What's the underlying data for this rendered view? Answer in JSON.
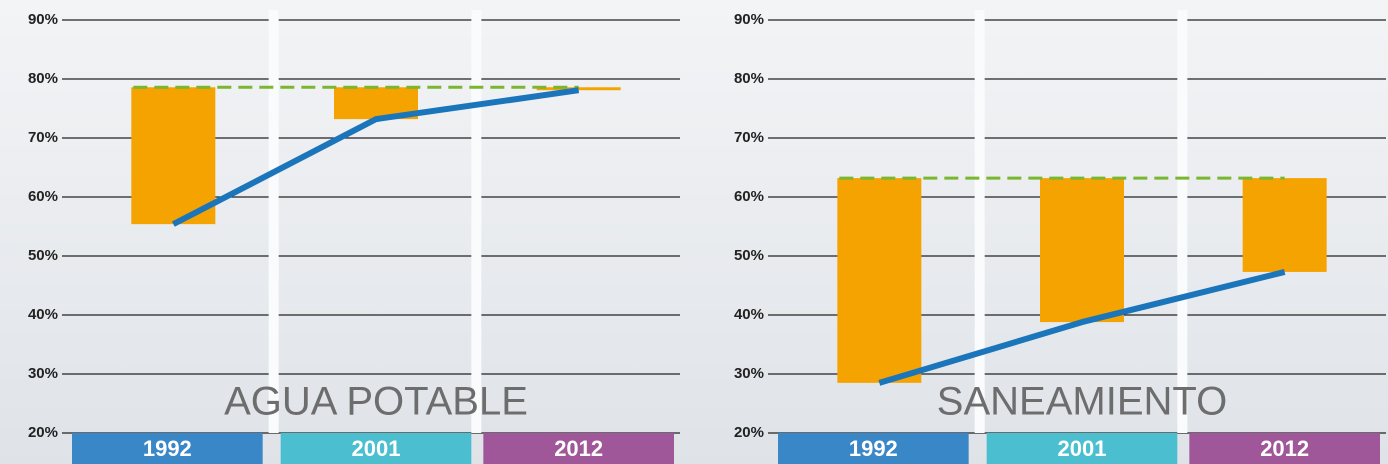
{
  "chart_data": [
    {
      "type": "gap",
      "annotation": "AGUA POTABLE",
      "categories": [
        "1992",
        "2001",
        "2012"
      ],
      "category_colors": [
        "#3a87c8",
        "#4bbfcf",
        "#a0579a"
      ],
      "line": {
        "color": "#1b75bb",
        "values": [
          55.4,
          73.2,
          78.1
        ]
      },
      "target": 78.6,
      "target_color": "#7ab630",
      "bar_color": "#f5a300",
      "ylim": [
        20,
        90
      ],
      "yticks": [
        {
          "value": 20,
          "label": "20%"
        },
        {
          "value": 30,
          "label": "30%"
        },
        {
          "value": 40,
          "label": "40%"
        },
        {
          "value": 50,
          "label": "50%"
        },
        {
          "value": 60,
          "label": "60%"
        },
        {
          "value": 70,
          "label": "70%"
        },
        {
          "value": 80,
          "label": "80%"
        },
        {
          "value": 90,
          "label": "90%"
        }
      ]
    },
    {
      "type": "gap",
      "annotation": "SANEAMIENTO",
      "categories": [
        "1992",
        "2001",
        "2012"
      ],
      "category_colors": [
        "#3a87c8",
        "#4bbfcf",
        "#a0579a"
      ],
      "line": {
        "color": "#1b75bb",
        "values": [
          28.5,
          38.8,
          47.3
        ]
      },
      "target": 63.2,
      "target_color": "#7ab630",
      "bar_color": "#f5a300",
      "ylim": [
        20,
        90
      ],
      "yticks": [
        {
          "value": 20,
          "label": "20%"
        },
        {
          "value": 30,
          "label": "30%"
        },
        {
          "value": 40,
          "label": "40%"
        },
        {
          "value": 50,
          "label": "50%"
        },
        {
          "value": 60,
          "label": "60%"
        },
        {
          "value": 70,
          "label": "70%"
        },
        {
          "value": 80,
          "label": "80%"
        },
        {
          "value": 90,
          "label": "90%"
        }
      ]
    }
  ]
}
